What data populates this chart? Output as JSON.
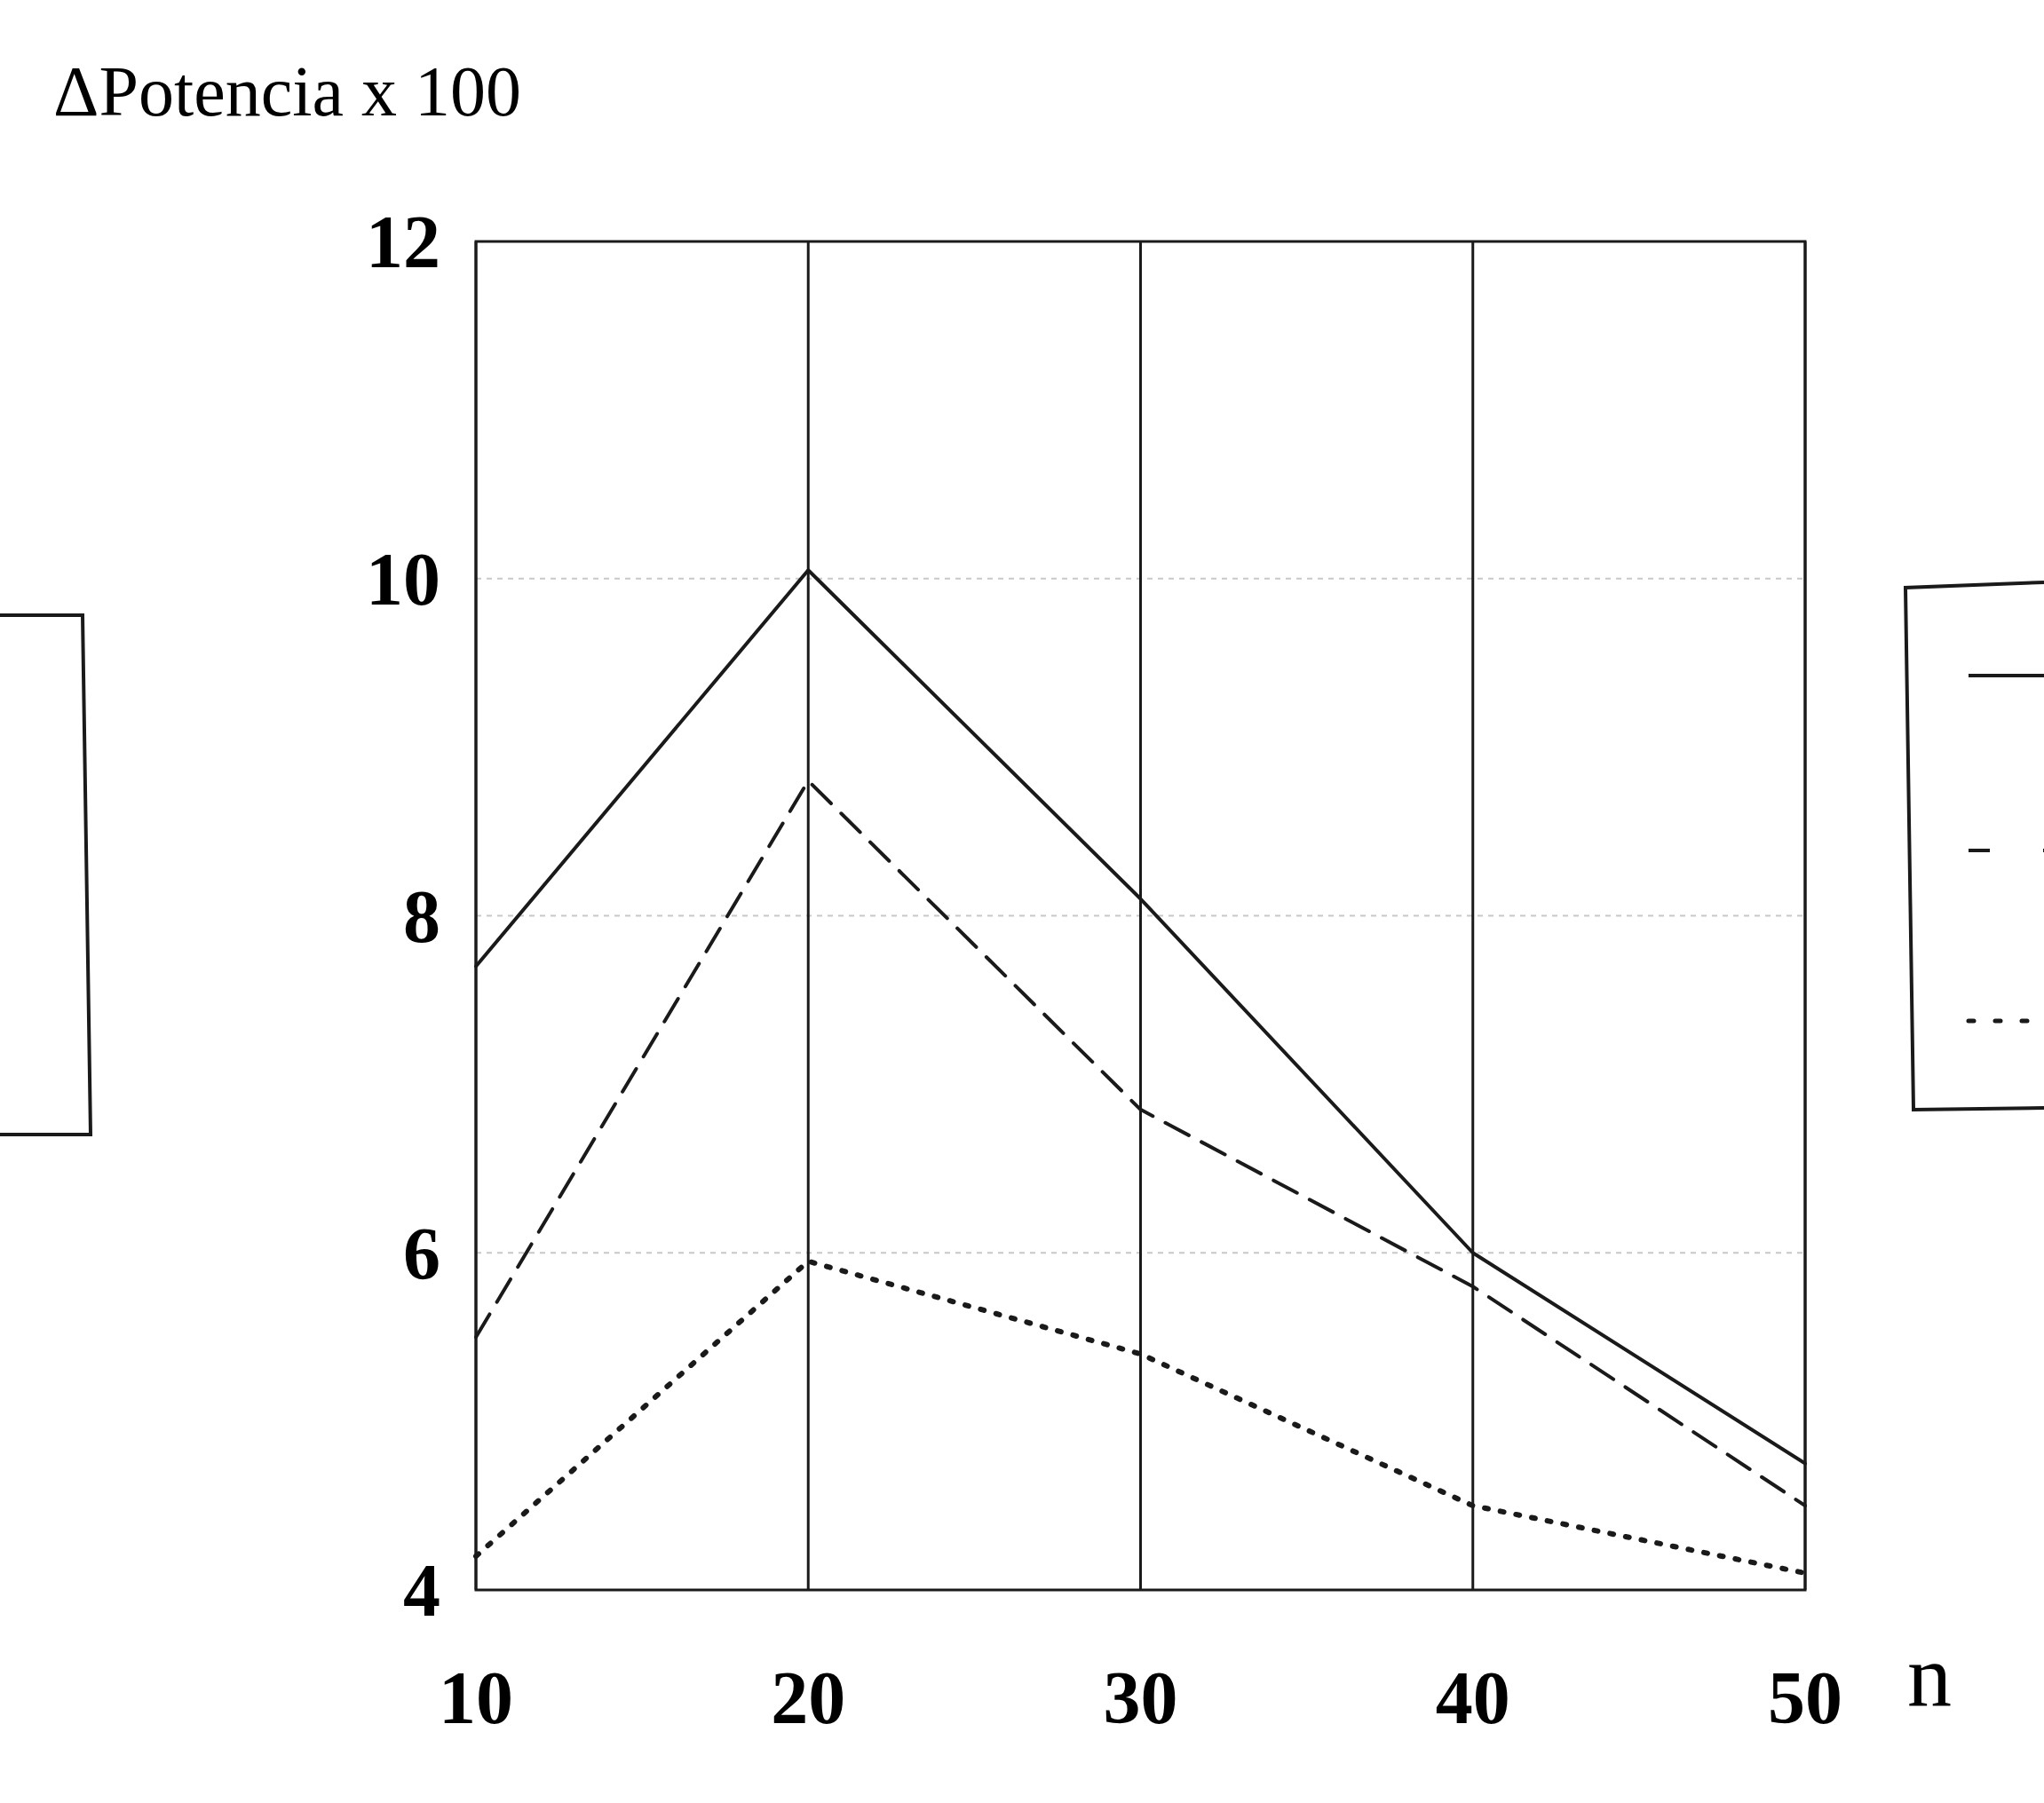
{
  "chart_data": {
    "type": "line",
    "ylabel": "ΔPotencia  x 100",
    "xlabel": "n",
    "x": [
      10,
      20,
      30,
      40,
      50
    ],
    "xlim": [
      10,
      50
    ],
    "xticks": [
      10,
      20,
      30,
      40,
      50
    ],
    "ylim": [
      4,
      12
    ],
    "yticks": [
      4,
      6,
      8,
      10,
      12
    ],
    "grid": true,
    "marker": "none",
    "series": [
      {
        "color": "#1a1a1a",
        "line_style": "solid",
        "values": [
          7.7,
          10.05,
          8.1,
          6.0,
          4.75
        ]
      },
      {
        "color": "#1a1a1a",
        "line_style": "dashed",
        "values": [
          5.5,
          8.8,
          6.85,
          5.8,
          4.5
        ]
      },
      {
        "color": "#1a1a1a",
        "line_style": "dotted",
        "values": [
          4.2,
          5.95,
          5.4,
          4.5,
          4.1
        ]
      }
    ]
  }
}
